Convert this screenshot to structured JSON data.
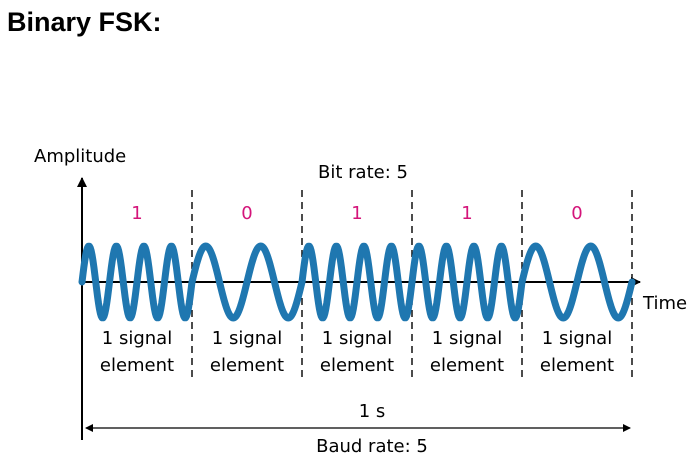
{
  "heading": "Binary FSK:",
  "axes": {
    "y_label": "Amplitude",
    "x_label": "Time"
  },
  "bit_rate_label": "Bit rate: 5",
  "baud_rate_label": "Baud rate: 5",
  "duration_label": "1 s",
  "bits": [
    "1",
    "0",
    "1",
    "1",
    "0"
  ],
  "cycles_per_bit": {
    "1": 4,
    "0": 2
  },
  "segment_label_line1": "1 signal",
  "segment_label_line2": "element",
  "colors": {
    "bit_text": "#d4147a",
    "wave": "#1f77b0",
    "axis": "#000000"
  }
}
